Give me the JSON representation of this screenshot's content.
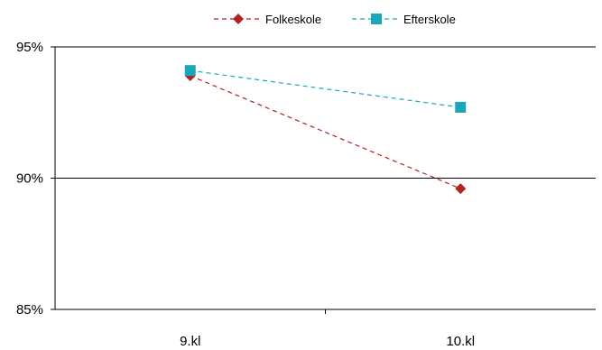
{
  "chart_data": {
    "type": "line",
    "categories": [
      "9.kl",
      "10.kl"
    ],
    "series": [
      {
        "name": "Folkeskole",
        "values": [
          93.9,
          89.6
        ],
        "color": "#b22222",
        "marker": "diamond",
        "line_style": "dashed"
      },
      {
        "name": "Efterskole",
        "values": [
          94.1,
          92.7
        ],
        "color": "#1aa7b8",
        "marker": "square",
        "line_style": "dashed"
      }
    ],
    "ylim": [
      85,
      95
    ],
    "y_ticks": [
      85,
      90,
      95
    ],
    "y_tick_labels": [
      "85%",
      "90%",
      "95%"
    ],
    "y_gridlines": [
      90,
      95
    ],
    "legend_position": "top",
    "title": "",
    "xlabel": "",
    "ylabel": ""
  }
}
